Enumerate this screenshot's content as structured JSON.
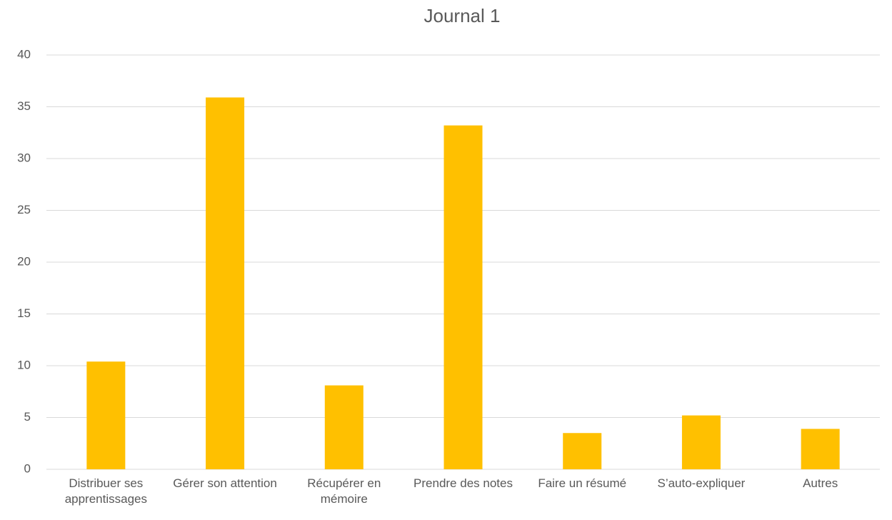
{
  "chart_data": {
    "type": "bar",
    "title": "Journal 1",
    "categories": [
      "Distribuer ses apprentissages",
      "Gérer son attention",
      "Récupérer en mémoire",
      "Prendre des notes",
      "Faire un résumé",
      "S’auto-expliquer",
      "Autres"
    ],
    "values": [
      10.4,
      35.9,
      8.1,
      33.2,
      3.5,
      5.2,
      3.9
    ],
    "color": "#ffc000",
    "ylim": [
      0,
      40
    ],
    "yticks": [
      0,
      5,
      10,
      15,
      20,
      25,
      30,
      35,
      40
    ],
    "grid": true
  }
}
